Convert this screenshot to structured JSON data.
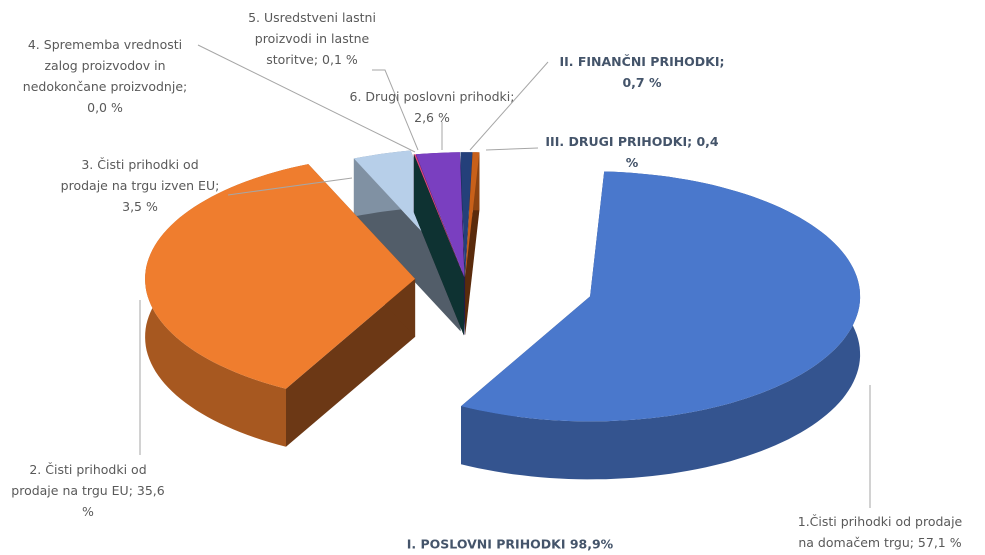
{
  "chart_data": {
    "type": "pie3d",
    "values": [
      57.1,
      35.6,
      3.5,
      0.0,
      0.1,
      2.6,
      0.7,
      0.4
    ],
    "value_labels": [
      "1.Čisti prihodki od prodaje na domačem trgu; 57,1 %",
      "2. Čisti prihodki od prodaje na trgu EU; 35,6 %",
      "3. Čisti prihodki od prodaje na trgu izven EU; 3,5 %",
      "4. Sprememba vrednosti zalog proizvodov in nedokončane proizvodnje; 0,0 %",
      "5. Usredstveni lastni proizvodi in lastne storitve; 0,1 %",
      "6. Drugi poslovni prihodki; 2,6 %",
      "II. FINANČNI PRIHODKI; 0,7 %",
      "III. DRUGI PRIHODKI; 0,4 %"
    ],
    "colors": [
      "#4a78cc",
      "#ef7d2e",
      "#b7cfe9",
      "#1f6f6f",
      "#e0457b",
      "#7a3fc0",
      "#24407a",
      "#c8601a"
    ],
    "annotation": "I. POSLOVNI PRIHODKI 98,9%"
  }
}
